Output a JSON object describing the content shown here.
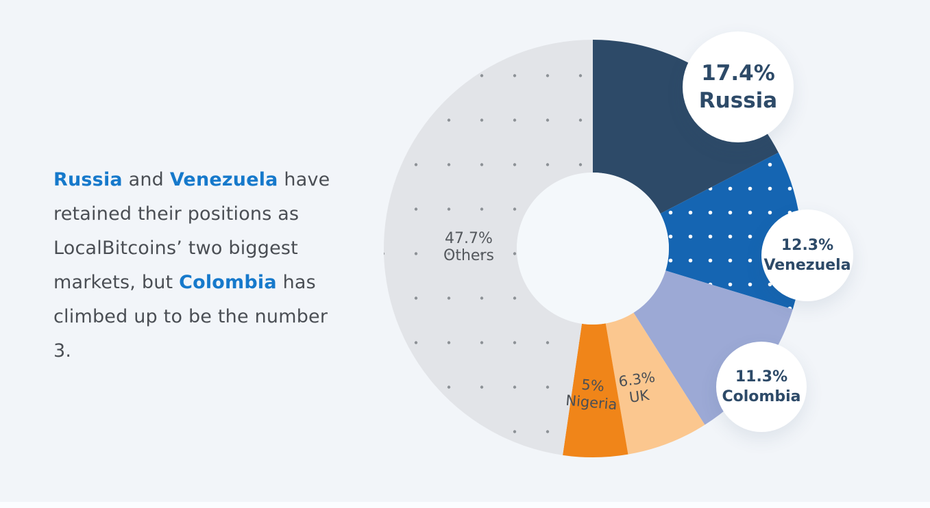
{
  "description": {
    "segments": [
      {
        "text": "Russia",
        "highlight": true
      },
      {
        "text": " and ",
        "highlight": false
      },
      {
        "text": "Venezuela",
        "highlight": true
      },
      {
        "text": " have retained their positions as LocalBitcoins’ two biggest markets, but ",
        "highlight": false
      },
      {
        "text": "Colombia",
        "highlight": true
      },
      {
        "text": " has climbed up to be the number 3.",
        "highlight": false
      }
    ]
  },
  "chart_data": {
    "type": "pie",
    "donut": true,
    "start_angle_deg": 0,
    "direction": "clockwise",
    "series": [
      {
        "label": "Russia",
        "value": 17.4,
        "display_pct": "17.4%",
        "color": "#2d4a68",
        "pattern": null,
        "callout": "bubble"
      },
      {
        "label": "Venezuela",
        "value": 12.3,
        "display_pct": "12.3%",
        "color": "#1565b2",
        "pattern": "white-dots",
        "callout": "bubble"
      },
      {
        "label": "Colombia",
        "value": 11.3,
        "display_pct": "11.3%",
        "color": "#9ca9d5",
        "pattern": null,
        "callout": "bubble"
      },
      {
        "label": "UK",
        "value": 6.3,
        "display_pct": "6.3%",
        "color": "#fbc78f",
        "pattern": null,
        "callout": "inline"
      },
      {
        "label": "Nigeria",
        "value": 5,
        "display_pct": "5%",
        "color": "#f08519",
        "pattern": null,
        "callout": "inline"
      },
      {
        "label": "Others",
        "value": 47.7,
        "display_pct": "47.7%",
        "color": "#e2e4e8",
        "pattern": "gray-dots",
        "callout": "inline"
      }
    ],
    "patterns": {
      "white-dots": {
        "dot_color": "#ffffff",
        "tile": [
          29,
          35
        ],
        "dot_radius": 2.8
      },
      "gray-dots": {
        "dot_color": "#8c9196",
        "tile": [
          48,
          65
        ],
        "dot_radius": 2.2
      }
    }
  },
  "inline_labels": {
    "others": {
      "pct": "47.7%",
      "name": "Others"
    },
    "uk": {
      "pct": "6.3%",
      "name": "UK"
    },
    "nigeria": {
      "pct": "5%",
      "name": "Nigeria"
    }
  },
  "bubbles": {
    "russia": {
      "pct": "17.4%",
      "name": "Russia"
    },
    "venezuela": {
      "pct": "12.3%",
      "name": "Venezuela"
    },
    "colombia": {
      "pct": "11.3%",
      "name": "Colombia"
    }
  },
  "colors": {
    "background": "#f2f5f9",
    "donut_hole": "#f4f8fb",
    "text_primary": "#4a4e54",
    "text_highlight": "#1679cb",
    "bubble_text": "#2d4a68",
    "label_text": "#54585d"
  }
}
